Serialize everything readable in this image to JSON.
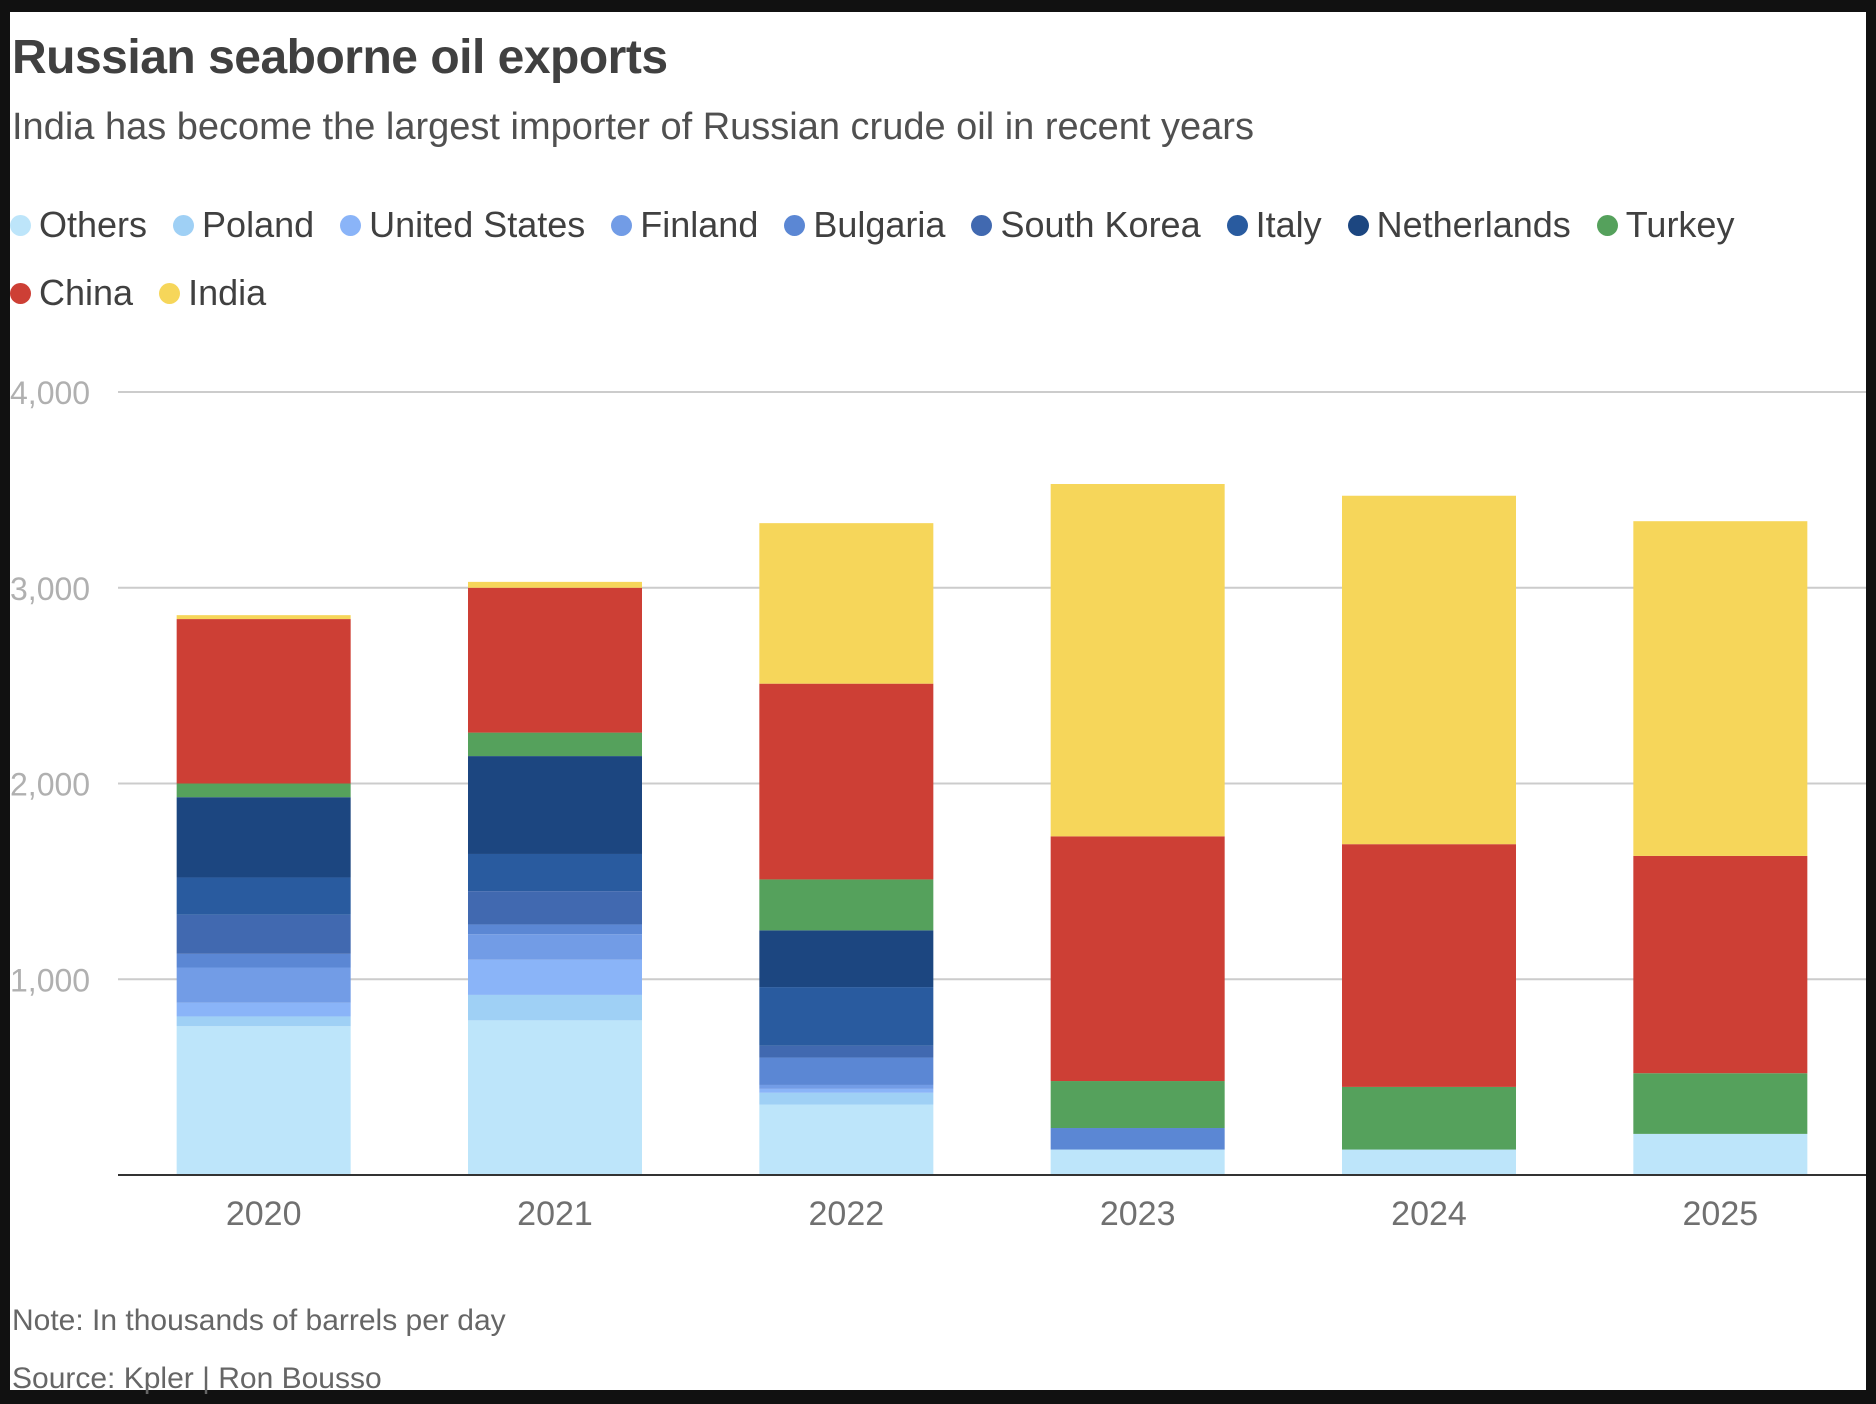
{
  "title": "Russian seaborne oil exports",
  "subtitle": "India has become the largest importer of Russian crude oil in recent years",
  "note": "Note: In thousands of barrels per day",
  "source": "Source: Kpler | Ron Bousso",
  "chart_data": {
    "type": "bar",
    "stacked": true,
    "categories": [
      "2020",
      "2021",
      "2022",
      "2023",
      "2024",
      "2025"
    ],
    "ylim": [
      0,
      4000
    ],
    "yticks": [
      1000,
      2000,
      3000,
      4000
    ],
    "ytick_labels": [
      "1,000",
      "2,000",
      "3,000",
      "4,000"
    ],
    "grid": true,
    "legend_position": "top",
    "series": [
      {
        "name": "Others",
        "color": "#bde5fa",
        "values": [
          760,
          790,
          360,
          130,
          130,
          210
        ]
      },
      {
        "name": "Poland",
        "color": "#9fd0f5",
        "values": [
          50,
          130,
          60,
          0,
          0,
          0
        ]
      },
      {
        "name": "United States",
        "color": "#8ab4f8",
        "values": [
          70,
          180,
          20,
          0,
          0,
          0
        ]
      },
      {
        "name": "Finland",
        "color": "#729ce6",
        "values": [
          180,
          130,
          20,
          0,
          0,
          0
        ]
      },
      {
        "name": "Bulgaria",
        "color": "#5b87d4",
        "values": [
          70,
          50,
          140,
          110,
          0,
          0
        ]
      },
      {
        "name": "South Korea",
        "color": "#4169b0",
        "values": [
          200,
          170,
          60,
          0,
          0,
          0
        ]
      },
      {
        "name": "Italy",
        "color": "#295b9f",
        "values": [
          190,
          190,
          300,
          0,
          0,
          0
        ]
      },
      {
        "name": "Netherlands",
        "color": "#1c4680",
        "values": [
          410,
          500,
          290,
          0,
          0,
          0
        ]
      },
      {
        "name": "Turkey",
        "color": "#55a15c",
        "values": [
          70,
          120,
          260,
          240,
          320,
          310
        ]
      },
      {
        "name": "China",
        "color": "#cd3f35",
        "values": [
          840,
          740,
          1000,
          1250,
          1240,
          1110
        ]
      },
      {
        "name": "India",
        "color": "#f6d65a",
        "values": [
          20,
          30,
          820,
          1800,
          1780,
          1710
        ]
      }
    ]
  }
}
